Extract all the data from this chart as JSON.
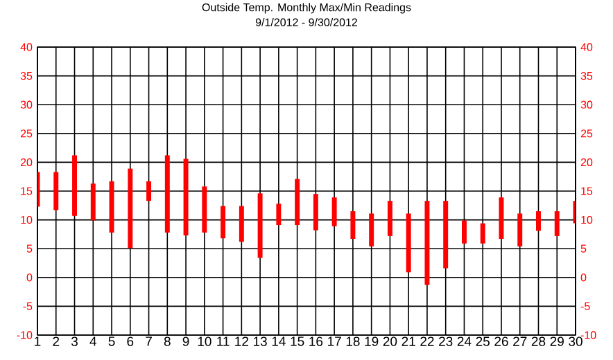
{
  "chart_data": {
    "type": "bar",
    "title": "Outside Temp. Monthly Max/Min Readings",
    "subtitle": "9/1/2012 - 9/30/2012",
    "categories": [
      "1",
      "2",
      "3",
      "4",
      "5",
      "6",
      "7",
      "8",
      "9",
      "10",
      "11",
      "12",
      "13",
      "14",
      "15",
      "16",
      "17",
      "18",
      "19",
      "20",
      "21",
      "22",
      "23",
      "24",
      "25",
      "26",
      "27",
      "28",
      "29",
      "30"
    ],
    "base": [
      12.3,
      11.7,
      10.7,
      9.9,
      7.8,
      5.1,
      13.3,
      7.8,
      7.3,
      7.8,
      6.8,
      6.2,
      3.4,
      9.1,
      9.1,
      8.2,
      8.9,
      6.7,
      5.4,
      7.2,
      0.9,
      -1.3,
      1.6,
      5.9,
      5.9,
      6.7,
      5.4,
      8.1,
      7.2,
      9.4
    ],
    "values": [
      6.0,
      6.6,
      10.5,
      6.4,
      8.9,
      13.8,
      3.4,
      13.4,
      13.3,
      8.0,
      5.6,
      6.2,
      11.2,
      3.7,
      8.0,
      6.3,
      5.0,
      4.8,
      5.7,
      6.1,
      10.2,
      14.6,
      11.7,
      4.0,
      3.5,
      7.2,
      5.7,
      3.4,
      4.3,
      3.9
    ],
    "color": "#ff0000",
    "ylim": [
      -10,
      40
    ],
    "yticks": [
      -10,
      -5,
      0,
      5,
      10,
      15,
      20,
      25,
      30,
      35,
      40
    ],
    "y2lim": [
      -10,
      40
    ],
    "y2ticks": [
      -10,
      -5,
      0,
      5,
      10,
      15,
      20,
      25,
      30,
      35,
      40
    ],
    "grid": true
  }
}
